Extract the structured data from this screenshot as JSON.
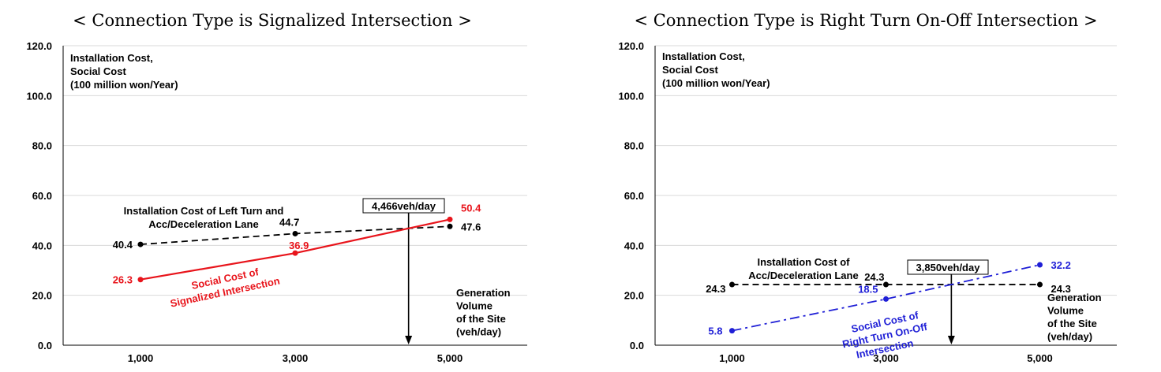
{
  "charts": [
    {
      "title": "< Connection Type is Signalized Intersection >",
      "ylabel_lines": [
        "Installation Cost,",
        "Social Cost",
        "(100 million won/Year)"
      ],
      "xlabel_lines": [
        "Generation",
        "Volume",
        "of the Site",
        "(veh/day)"
      ],
      "ytick_labels": [
        "0.0",
        "20.0",
        "40.0",
        "60.0",
        "80.0",
        "100.0",
        "120.0"
      ],
      "xtick_labels": [
        "1,000",
        "3,000",
        "5,000"
      ],
      "crossing_label": "4,466veh/day",
      "series": [
        {
          "label_lines": [
            "Installation Cost of Left Turn and",
            "Acc/Deceleration Lane"
          ],
          "color": "#000000",
          "dash": "8,5",
          "point_labels": [
            "40.4",
            "44.7",
            "47.6"
          ]
        },
        {
          "label_lines": [
            "Social Cost of",
            "Signalized Intersection"
          ],
          "color": "#e8141b",
          "dash": "",
          "point_labels": [
            "26.3",
            "36.9",
            "50.4"
          ]
        }
      ]
    },
    {
      "title": "< Connection Type is Right Turn On-Off Intersection >",
      "ylabel_lines": [
        "Installation Cost,",
        "Social Cost",
        "(100 million won/Year)"
      ],
      "xlabel_lines": [
        "Generation",
        "Volume",
        "of the Site",
        "(veh/day)"
      ],
      "ytick_labels": [
        "0.0",
        "20.0",
        "40.0",
        "60.0",
        "80.0",
        "100.0",
        "120.0"
      ],
      "xtick_labels": [
        "1,000",
        "3,000",
        "5,000"
      ],
      "crossing_label": "3,850veh/day",
      "series": [
        {
          "label_lines": [
            "Installation Cost of",
            "Acc/Deceleration Lane"
          ],
          "color": "#000000",
          "dash": "8,5",
          "point_labels": [
            "24.3",
            "24.3",
            "24.3"
          ]
        },
        {
          "label_lines": [
            "Social Cost of",
            "Right Turn On-Off",
            "Intersection"
          ],
          "color": "#1f1fd6",
          "dash": "12,5,3,5",
          "point_labels": [
            "5.8",
            "18.5",
            "32.2"
          ]
        }
      ]
    }
  ],
  "chart_data": [
    {
      "type": "line",
      "title": "< Connection Type is Signalized Intersection >",
      "x": [
        1000,
        3000,
        5000
      ],
      "xlabel": "Generation Volume of the Site (veh/day)",
      "ylabel": "Installation Cost, Social Cost (100 million won/Year)",
      "ylim": [
        0,
        120
      ],
      "xlim": [
        0,
        6000
      ],
      "grid": true,
      "crossing_x": 4466,
      "series": [
        {
          "name": "Installation Cost of Left Turn and Acc/Deceleration Lane",
          "values": [
            40.4,
            44.7,
            47.6
          ]
        },
        {
          "name": "Social Cost of Signalized Intersection",
          "values": [
            26.3,
            36.9,
            50.4
          ]
        }
      ]
    },
    {
      "type": "line",
      "title": "< Connection Type is Right Turn On-Off Intersection >",
      "x": [
        1000,
        3000,
        5000
      ],
      "xlabel": "Generation Volume of the Site (veh/day)",
      "ylabel": "Installation Cost, Social Cost (100 million won/Year)",
      "ylim": [
        0,
        120
      ],
      "xlim": [
        0,
        6000
      ],
      "grid": true,
      "crossing_x": 3850,
      "series": [
        {
          "name": "Installation Cost of Acc/Deceleration Lane",
          "values": [
            24.3,
            24.3,
            24.3
          ]
        },
        {
          "name": "Social Cost of Right Turn On-Off Intersection",
          "values": [
            5.8,
            18.5,
            32.2
          ]
        }
      ]
    }
  ]
}
